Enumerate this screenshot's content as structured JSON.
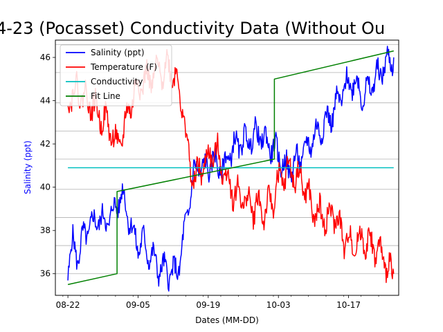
{
  "chart_data": {
    "type": "line",
    "title": "4-23 (Pocasset) Conductivity Data (Without Ou",
    "xlabel": "Dates (MM-DD)",
    "ylabel": "Salinity (ppt)",
    "ylabel_color": "#0000ff",
    "x_tick_labels": [
      "08-22",
      "09-05",
      "09-19",
      "10-03",
      "10-17"
    ],
    "x_tick_days": [
      0,
      14,
      28,
      42,
      56
    ],
    "x_range_days": [
      -2.5,
      66
    ],
    "ylim": [
      35,
      46.8
    ],
    "y_ticks": [
      36,
      38,
      40,
      42,
      44,
      46
    ],
    "y_gridlines": [
      36,
      37.3,
      38.6,
      39.9,
      41.3,
      42.6,
      43.9,
      45.3,
      46.6
    ],
    "grid": "horizontal",
    "legend_position": "top-left",
    "series": [
      {
        "name": "Salinity (ppt)",
        "color": "#0000ff",
        "points": [
          [
            0,
            36.2
          ],
          [
            1,
            37.4
          ],
          [
            2,
            36.8
          ],
          [
            3,
            37.6
          ],
          [
            4,
            38.1
          ],
          [
            5,
            38.3
          ],
          [
            6,
            38.6
          ],
          [
            7,
            38.4
          ],
          [
            8,
            38.5
          ],
          [
            9,
            38.8
          ],
          [
            10,
            39.4
          ],
          [
            11,
            39.6
          ],
          [
            12,
            38.8
          ],
          [
            13,
            37.8
          ],
          [
            14,
            37.3
          ],
          [
            15,
            37.5
          ],
          [
            16,
            37.0
          ],
          [
            17,
            36.7
          ],
          [
            18,
            36.3
          ],
          [
            19,
            36.2
          ],
          [
            20,
            36.1
          ],
          [
            21,
            36.0
          ],
          [
            22,
            36.2
          ],
          [
            23,
            37.5
          ],
          [
            24,
            39.0
          ],
          [
            25,
            40.5
          ],
          [
            26,
            41.0
          ],
          [
            27,
            40.8
          ],
          [
            28,
            41.0
          ],
          [
            29,
            41.2
          ],
          [
            30,
            41.0
          ],
          [
            31,
            40.8
          ],
          [
            32,
            41.5
          ],
          [
            33,
            41.8
          ],
          [
            34,
            42.0
          ],
          [
            35,
            42.1
          ],
          [
            36,
            42.2
          ],
          [
            37,
            42.3
          ],
          [
            38,
            42.5
          ],
          [
            39,
            42.2
          ],
          [
            40,
            42.0
          ],
          [
            41,
            41.8
          ],
          [
            42,
            41.5
          ],
          [
            43,
            41.0
          ],
          [
            44,
            40.8
          ],
          [
            45,
            41.0
          ],
          [
            46,
            41.3
          ],
          [
            47,
            41.5
          ],
          [
            48,
            42.0
          ],
          [
            49,
            42.3
          ],
          [
            50,
            42.6
          ],
          [
            51,
            42.9
          ],
          [
            52,
            43.2
          ],
          [
            53,
            43.5
          ],
          [
            54,
            44.0
          ],
          [
            55,
            44.5
          ],
          [
            56,
            44.8
          ],
          [
            57,
            44.9
          ],
          [
            58,
            44.6
          ],
          [
            59,
            44.2
          ],
          [
            60,
            44.5
          ],
          [
            61,
            44.9
          ],
          [
            62,
            45.2
          ],
          [
            63,
            45.6
          ],
          [
            64,
            45.8
          ],
          [
            65,
            46.0
          ]
        ],
        "jitter": 0.9
      },
      {
        "name": "Temperature (F)",
        "color": "#ff0000",
        "points": [
          [
            0,
            44.2
          ],
          [
            1,
            44.4
          ],
          [
            2,
            44.5
          ],
          [
            3,
            44.2
          ],
          [
            4,
            44.0
          ],
          [
            5,
            43.8
          ],
          [
            6,
            43.4
          ],
          [
            7,
            43.2
          ],
          [
            8,
            42.9
          ],
          [
            9,
            42.4
          ],
          [
            10,
            41.8
          ],
          [
            11,
            42.5
          ],
          [
            12,
            43.5
          ],
          [
            13,
            44.2
          ],
          [
            14,
            44.7
          ],
          [
            15,
            44.9
          ],
          [
            16,
            45.0
          ],
          [
            17,
            45.1
          ],
          [
            18,
            45.3
          ],
          [
            19,
            45.4
          ],
          [
            20,
            45.6
          ],
          [
            21,
            45.3
          ],
          [
            22,
            44.8
          ],
          [
            23,
            43.5
          ],
          [
            24,
            41.5
          ],
          [
            25,
            40.3
          ],
          [
            26,
            40.6
          ],
          [
            27,
            41.0
          ],
          [
            28,
            41.3
          ],
          [
            29,
            41.6
          ],
          [
            30,
            41.5
          ],
          [
            31,
            40.8
          ],
          [
            32,
            40.3
          ],
          [
            33,
            39.8
          ],
          [
            34,
            39.6
          ],
          [
            35,
            39.5
          ],
          [
            36,
            39.3
          ],
          [
            37,
            39.0
          ],
          [
            38,
            39.2
          ],
          [
            39,
            38.8
          ],
          [
            40,
            39.1
          ],
          [
            41,
            39.5
          ],
          [
            42,
            40.2
          ],
          [
            43,
            40.5
          ],
          [
            44,
            40.8
          ],
          [
            45,
            40.6
          ],
          [
            46,
            40.4
          ],
          [
            47,
            40.2
          ],
          [
            48,
            39.5
          ],
          [
            49,
            38.8
          ],
          [
            50,
            38.8
          ],
          [
            51,
            38.6
          ],
          [
            52,
            38.5
          ],
          [
            53,
            38.8
          ],
          [
            54,
            38.3
          ],
          [
            55,
            37.5
          ],
          [
            56,
            37.6
          ],
          [
            57,
            37.3
          ],
          [
            58,
            37.5
          ],
          [
            59,
            37.6
          ],
          [
            60,
            37.4
          ],
          [
            61,
            37.2
          ],
          [
            62,
            37.0
          ],
          [
            63,
            36.6
          ],
          [
            64,
            36.3
          ],
          [
            65,
            36.0
          ]
        ],
        "jitter": 1.0
      },
      {
        "name": "Conductivity",
        "color": "#00bfbf",
        "points": [
          [
            0,
            40.9
          ],
          [
            65,
            40.9
          ]
        ],
        "jitter": 0
      },
      {
        "name": "Fit Line",
        "color": "#008000",
        "step": true,
        "points": [
          [
            0,
            35.5
          ],
          [
            9.8,
            36.0
          ],
          [
            9.8,
            39.8
          ],
          [
            41.2,
            41.3
          ],
          [
            41.2,
            45.0
          ],
          [
            65,
            46.3
          ]
        ],
        "jitter": 0
      }
    ]
  }
}
